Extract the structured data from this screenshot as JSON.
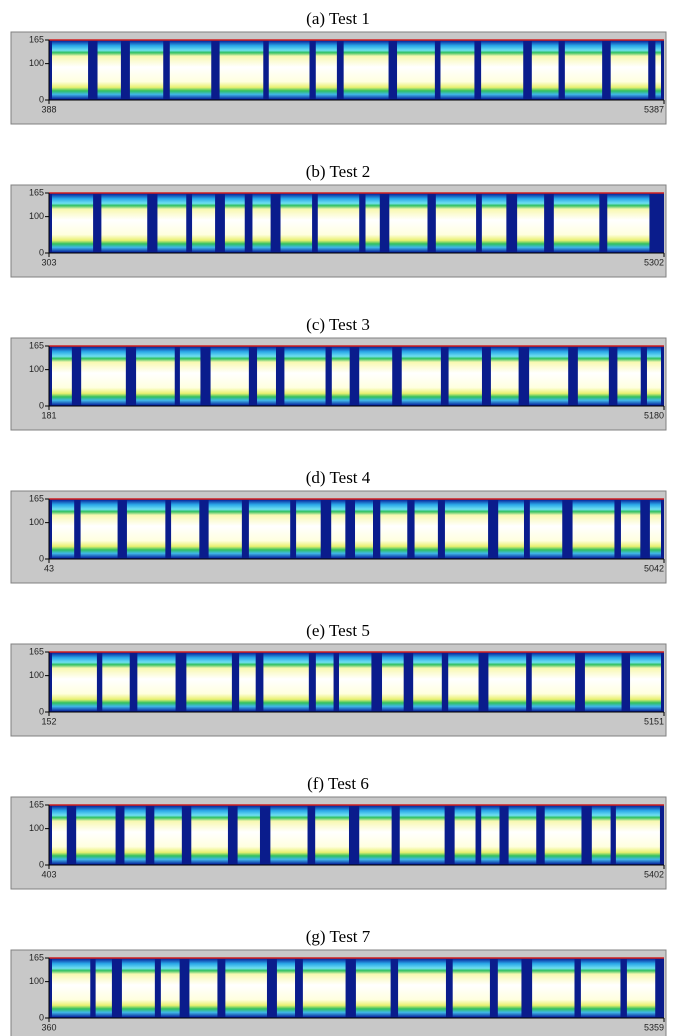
{
  "chart_data": [
    {
      "type": "heatmap",
      "title": "(a) Test 1",
      "xlim": [
        388,
        5387
      ],
      "xticks": [
        388,
        5387
      ],
      "ylim": [
        0,
        165
      ],
      "yticks": [
        0,
        100,
        165
      ]
    },
    {
      "type": "heatmap",
      "title": "(b) Test 2",
      "xlim": [
        303,
        5302
      ],
      "xticks": [
        303,
        5302
      ],
      "ylim": [
        0,
        165
      ],
      "yticks": [
        0,
        100,
        165
      ]
    },
    {
      "type": "heatmap",
      "title": "(c) Test 3",
      "xlim": [
        181,
        5180
      ],
      "xticks": [
        181,
        5180
      ],
      "ylim": [
        0,
        165
      ],
      "yticks": [
        0,
        100,
        165
      ]
    },
    {
      "type": "heatmap",
      "title": "(d) Test 4",
      "xlim": [
        43,
        5042
      ],
      "xticks": [
        43,
        5042
      ],
      "ylim": [
        0,
        165
      ],
      "yticks": [
        0,
        100,
        165
      ]
    },
    {
      "type": "heatmap",
      "title": "(e) Test 5",
      "xlim": [
        152,
        5151
      ],
      "xticks": [
        152,
        5151
      ],
      "ylim": [
        0,
        165
      ],
      "yticks": [
        0,
        100,
        165
      ]
    },
    {
      "type": "heatmap",
      "title": "(f) Test 6",
      "xlim": [
        403,
        5402
      ],
      "xticks": [
        403,
        5402
      ],
      "ylim": [
        0,
        165
      ],
      "yticks": [
        0,
        100,
        165
      ]
    },
    {
      "type": "heatmap",
      "title": "(g) Test 7",
      "xlim": [
        360,
        5359
      ],
      "xticks": [
        360,
        5359
      ],
      "ylim": [
        0,
        165
      ],
      "yticks": [
        0,
        100,
        165
      ]
    }
  ]
}
